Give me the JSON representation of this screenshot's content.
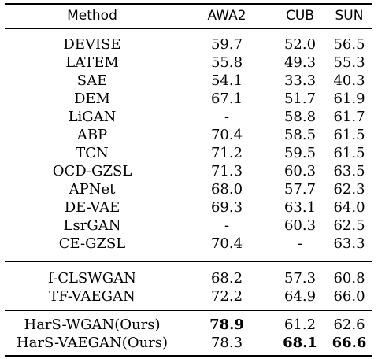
{
  "table": {
    "headers": [
      "Method",
      "AWA2",
      "CUB",
      "SUN"
    ],
    "groups": [
      {
        "rows": [
          {
            "method": "DEVISE",
            "awa2": "59.7",
            "cub": "52.0",
            "sun": "56.5"
          },
          {
            "method": "LATEM",
            "awa2": "55.8",
            "cub": "49.3",
            "sun": "55.3"
          },
          {
            "method": "SAE",
            "awa2": "54.1",
            "cub": "33.3",
            "sun": "40.3"
          },
          {
            "method": "DEM",
            "awa2": "67.1",
            "cub": "51.7",
            "sun": "61.9"
          },
          {
            "method": "LiGAN",
            "awa2": "-",
            "cub": "58.8",
            "sun": "61.7"
          },
          {
            "method": "ABP",
            "awa2": "70.4",
            "cub": "58.5",
            "sun": "61.5"
          },
          {
            "method": "TCN",
            "awa2": "71.2",
            "cub": "59.5",
            "sun": "61.5"
          },
          {
            "method": "OCD-GZSL",
            "awa2": "71.3",
            "cub": "60.3",
            "sun": "63.5"
          },
          {
            "method": "APNet",
            "awa2": "68.0",
            "cub": "57.7",
            "sun": "62.3"
          },
          {
            "method": "DE-VAE",
            "awa2": "69.3",
            "cub": "63.1",
            "sun": "64.0"
          },
          {
            "method": "LsrGAN",
            "awa2": "-",
            "cub": "60.3",
            "sun": "62.5"
          },
          {
            "method": "CE-GZSL",
            "awa2": "70.4",
            "cub": "-",
            "sun": "63.3"
          }
        ]
      },
      {
        "rows": [
          {
            "method": "f-CLSWGAN",
            "awa2": "68.2",
            "cub": "57.3",
            "sun": "60.8"
          },
          {
            "method": "TF-VAEGAN",
            "awa2": "72.2",
            "cub": "64.9",
            "sun": "66.0"
          }
        ]
      },
      {
        "rows": [
          {
            "method": "HarS-WGAN(Ours)",
            "awa2": "78.9",
            "cub": "61.2",
            "sun": "62.6",
            "bold": [
              "awa2"
            ]
          },
          {
            "method": "HarS-VAEGAN(Ours)",
            "awa2": "78.3",
            "cub": "68.1",
            "sun": "66.6",
            "bold": [
              "cub",
              "sun"
            ]
          }
        ]
      }
    ]
  }
}
